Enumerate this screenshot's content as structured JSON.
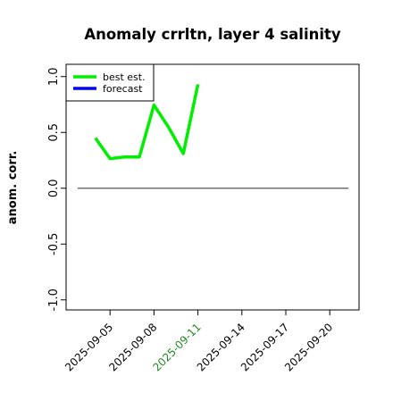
{
  "chart_data": {
    "type": "line",
    "title": "Anomaly crrltn, layer 4 salinity",
    "ylabel": "anom. corr.",
    "x": [
      "2025-09-04",
      "2025-09-05",
      "2025-09-06",
      "2025-09-07",
      "2025-09-08",
      "2025-09-09",
      "2025-09-10",
      "2025-09-11"
    ],
    "series": [
      {
        "name": "best est.",
        "color": "#00ee00",
        "values": [
          0.45,
          0.265,
          0.28,
          0.28,
          0.745,
          0.545,
          0.31,
          0.93
        ]
      },
      {
        "name": "forecast",
        "color": "#0000ff",
        "values": [
          null,
          null,
          null,
          null,
          null,
          null,
          null,
          null
        ]
      }
    ],
    "xlim": [
      "2025-09-02",
      "2025-09-22"
    ],
    "xticks": [
      "2025-09-05",
      "2025-09-08",
      "2025-09-11",
      "2025-09-14",
      "2025-09-17",
      "2025-09-20"
    ],
    "highlighted_xtick": "2025-09-11",
    "highlight_color": "#228b22",
    "ylim": [
      -1.09,
      1.11
    ],
    "yticks": [
      {
        "value": -1.0,
        "label": "-1.0"
      },
      {
        "value": -0.5,
        "label": "-0.5"
      },
      {
        "value": 0.0,
        "label": "0.0"
      },
      {
        "value": 0.5,
        "label": "0.5"
      },
      {
        "value": 1.0,
        "label": "1.0"
      }
    ],
    "reference_line": 0,
    "legend": "upper left",
    "grid": false
  }
}
